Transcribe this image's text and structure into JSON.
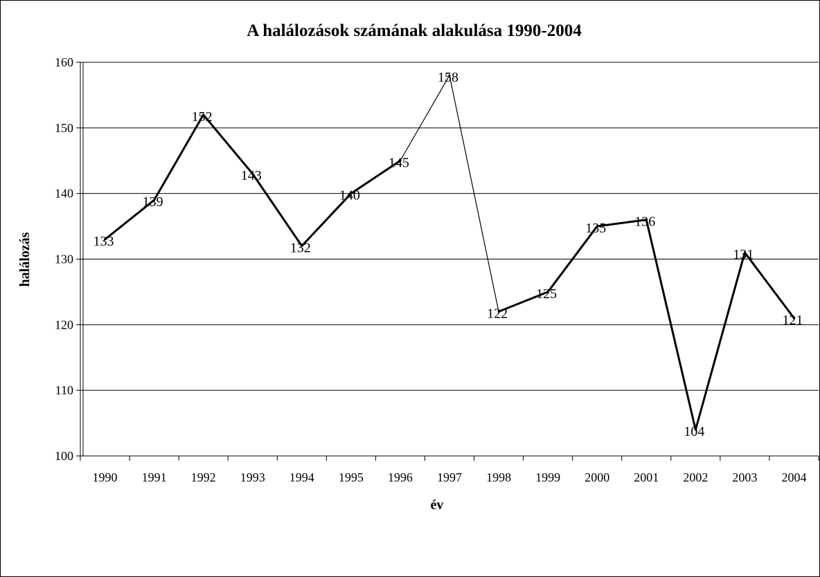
{
  "chart_data": {
    "type": "line",
    "title": "A halálozások számának alakulása 1990-2004",
    "xlabel": "év",
    "ylabel": "halálozás",
    "ylim": [
      100,
      160
    ],
    "yticks": [
      "100",
      "110",
      "120",
      "130",
      "140",
      "150",
      "160"
    ],
    "grid": true,
    "legend": false,
    "categories": [
      "1990",
      "1991",
      "1992",
      "1993",
      "1994",
      "1995",
      "1996",
      "1997",
      "1998",
      "1999",
      "2000",
      "2001",
      "2002",
      "2003",
      "2004"
    ],
    "series": [
      {
        "values": [
          133,
          139,
          152,
          143,
          132,
          140,
          145,
          158,
          122,
          125,
          135,
          136,
          104,
          131,
          121
        ]
      }
    ]
  }
}
